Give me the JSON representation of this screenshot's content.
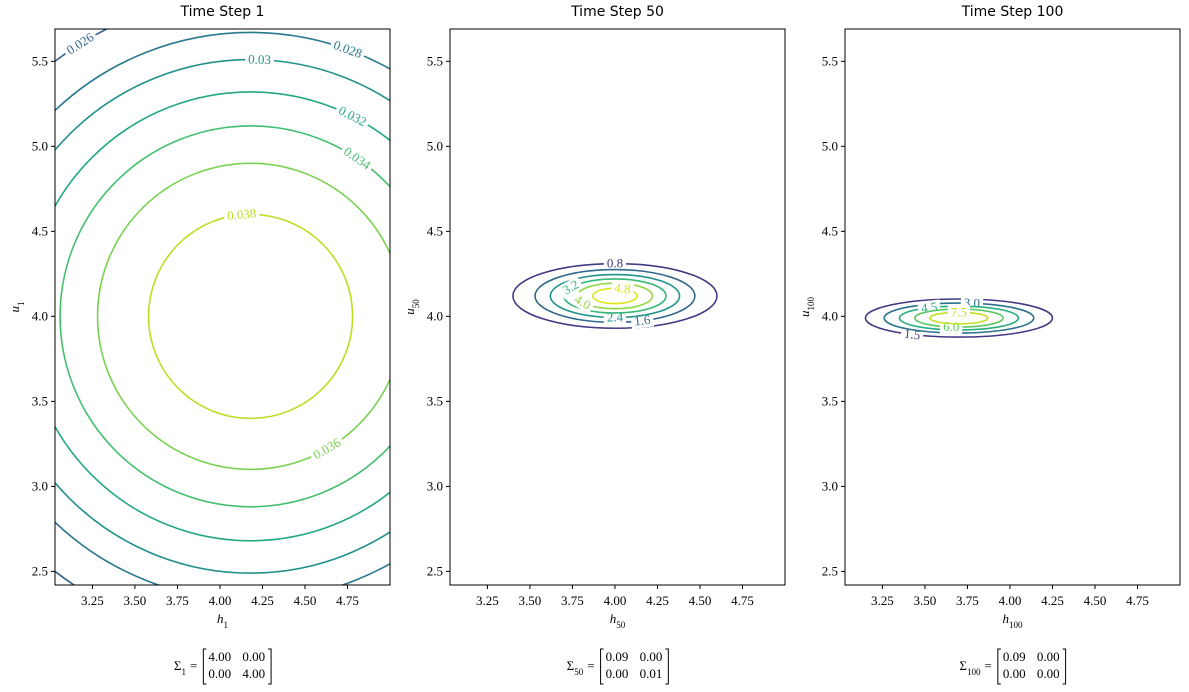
{
  "chart_data": [
    {
      "type": "contour",
      "title": "Time Step 1",
      "xlabel": {
        "symbol": "h",
        "subscript": "1"
      },
      "ylabel": {
        "symbol": "u",
        "subscript": "1"
      },
      "xlim": [
        3.03,
        5.0
      ],
      "ylim": [
        2.42,
        5.69
      ],
      "xticks": [
        3.25,
        {
          "value": 3.5,
          "label": "3.50"
        },
        3.75,
        {
          "value": 4,
          "label": "4.00"
        },
        4.25,
        {
          "value": 4.5,
          "label": "4.50"
        },
        4.75
      ],
      "yticks": [
        2.5,
        {
          "value": 3,
          "label": "3.0"
        },
        3.5,
        {
          "value": 4,
          "label": "4.0"
        },
        4.5,
        {
          "value": 5,
          "label": "5.0"
        },
        5.5
      ],
      "center": [
        4.18,
        4.0
      ],
      "levels": [
        0.026,
        0.028,
        0.03,
        0.032,
        0.034,
        0.036,
        0.038
      ],
      "radii": [
        [
          1.89,
          1.89
        ],
        [
          1.67,
          1.67
        ],
        [
          1.51,
          1.51
        ],
        [
          1.32,
          1.32
        ],
        [
          1.12,
          1.12
        ],
        [
          0.9,
          0.9
        ],
        [
          0.6,
          0.6
        ]
      ],
      "colors": [
        "#33638d",
        "#2a788e",
        "#21918c",
        "#22a884",
        "#44bf70",
        "#7ad151",
        "#bddf26"
      ],
      "annotation": {
        "symbol": "Σ",
        "subscript": "1",
        "relation": "=",
        "matrix": [
          [
            "4.00",
            "0.00"
          ],
          [
            "0.00",
            "4.00"
          ]
        ]
      }
    },
    {
      "type": "contour",
      "title": "Time Step 50",
      "xlabel": {
        "symbol": "h",
        "subscript": "50"
      },
      "ylabel": {
        "symbol": "u",
        "subscript": "50"
      },
      "xlim": [
        3.03,
        5.0
      ],
      "ylim": [
        2.42,
        5.69
      ],
      "xticks": [
        3.25,
        {
          "value": 3.5,
          "label": "3.50"
        },
        3.75,
        {
          "value": 4,
          "label": "4.00"
        },
        4.25,
        {
          "value": 4.5,
          "label": "4.50"
        },
        4.75
      ],
      "yticks": [
        2.5,
        {
          "value": 3,
          "label": "3.0"
        },
        3.5,
        {
          "value": 4,
          "label": "4.0"
        },
        4.5,
        {
          "value": 5,
          "label": "5.0"
        },
        5.5
      ],
      "center": [
        4.0,
        4.12
      ],
      "levels": [
        0.8,
        1.6,
        2.4,
        3.2,
        {
          "value": 4,
          "label": "4.0"
        },
        4.8
      ],
      "radii": [
        [
          0.6,
          0.19
        ],
        [
          0.47,
          0.155
        ],
        [
          0.38,
          0.126
        ],
        [
          0.3,
          0.1
        ],
        [
          0.22,
          0.075
        ],
        [
          0.13,
          0.045
        ]
      ],
      "colors": [
        "#443983",
        "#31688e",
        "#21918c",
        "#35b779",
        "#90d743",
        "#dce319"
      ],
      "annotation": {
        "symbol": "Σ",
        "subscript": "50",
        "relation": "=",
        "matrix": [
          [
            "0.09",
            "0.00"
          ],
          [
            "0.00",
            "0.01"
          ]
        ]
      }
    },
    {
      "type": "contour",
      "title": "Time Step 100",
      "xlabel": {
        "symbol": "h",
        "subscript": "100"
      },
      "ylabel": {
        "symbol": "u",
        "subscript": "100"
      },
      "xlim": [
        3.03,
        5.0
      ],
      "ylim": [
        2.42,
        5.69
      ],
      "xticks": [
        3.25,
        {
          "value": 3.5,
          "label": "3.50"
        },
        3.75,
        {
          "value": 4,
          "label": "4.00"
        },
        4.25,
        {
          "value": 4.5,
          "label": "4.50"
        },
        4.75
      ],
      "yticks": [
        2.5,
        {
          "value": 3,
          "label": "3.0"
        },
        3.5,
        {
          "value": 4,
          "label": "4.0"
        },
        4.5,
        {
          "value": 5,
          "label": "5.0"
        },
        5.5
      ],
      "center": [
        3.7,
        3.99
      ],
      "levels": [
        1.5,
        {
          "value": 3,
          "label": "3.0"
        },
        4.5,
        {
          "value": 6,
          "label": "6.0"
        },
        7.5
      ],
      "radii": [
        [
          0.55,
          0.112
        ],
        [
          0.44,
          0.088
        ],
        [
          0.35,
          0.07
        ],
        [
          0.26,
          0.053
        ],
        [
          0.17,
          0.034
        ]
      ],
      "colors": [
        "#443983",
        "#2c728e",
        "#28ae80",
        "#5ec962",
        "#c2df23"
      ],
      "annotation": {
        "symbol": "Σ",
        "subscript": "100",
        "relation": "=",
        "matrix": [
          [
            "0.09",
            "0.00"
          ],
          [
            "0.00",
            "0.00"
          ]
        ]
      }
    }
  ]
}
